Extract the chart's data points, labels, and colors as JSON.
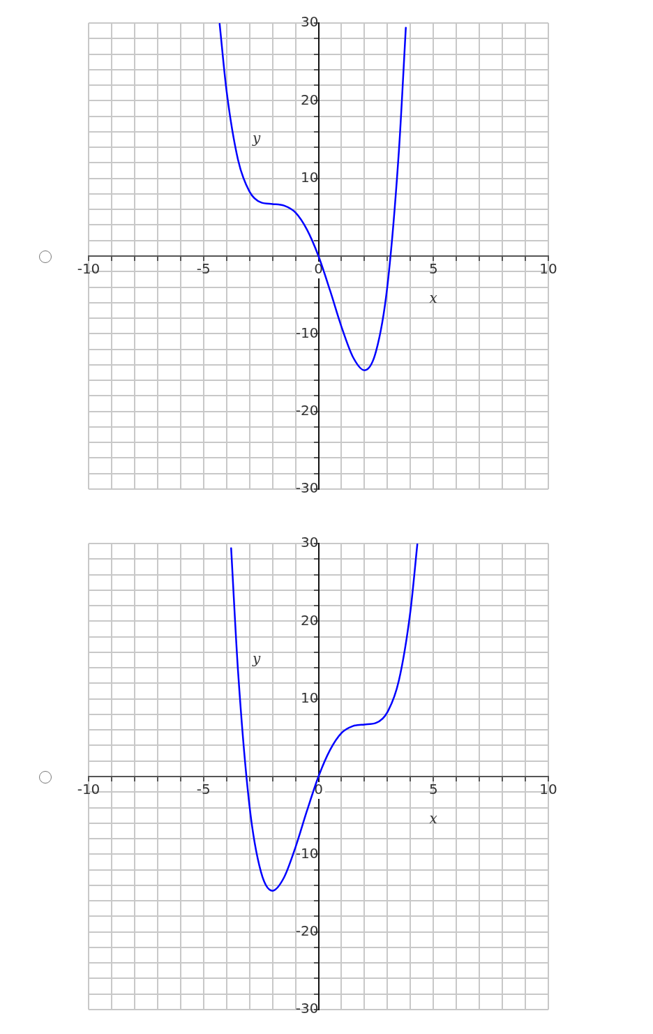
{
  "chart_data": [
    {
      "type": "line",
      "xlabel": "x",
      "ylabel": "y",
      "xlim": [
        -10,
        10
      ],
      "ylim": [
        -30,
        30
      ],
      "xticks": [
        -10,
        {
          "value": -9,
          "label": null
        },
        {
          "value": -8,
          "label": null
        },
        {
          "value": -7,
          "label": null
        },
        {
          "value": -6,
          "label": null
        },
        -5,
        {
          "value": -4,
          "label": null
        },
        {
          "value": -3,
          "label": null
        },
        {
          "value": -2,
          "label": null
        },
        {
          "value": -1,
          "label": null
        },
        0,
        {
          "value": 1,
          "label": null
        },
        {
          "value": 2,
          "label": null
        },
        {
          "value": 3,
          "label": null
        },
        {
          "value": 4,
          "label": null
        },
        5,
        {
          "value": 6,
          "label": null
        },
        {
          "value": 7,
          "label": null
        },
        {
          "value": 8,
          "label": null
        },
        {
          "value": 9,
          "label": null
        },
        10
      ],
      "yticks": [
        -30,
        {
          "value": -28,
          "label": null
        },
        {
          "value": -26,
          "label": null
        },
        {
          "value": -24,
          "label": null
        },
        {
          "value": -22,
          "label": null
        },
        -20,
        {
          "value": -18,
          "label": null
        },
        {
          "value": -16,
          "label": null
        },
        {
          "value": -14,
          "label": null
        },
        {
          "value": -12,
          "label": null
        },
        -10,
        {
          "value": -8,
          "label": null
        },
        {
          "value": -6,
          "label": null
        },
        {
          "value": -4,
          "label": null
        },
        {
          "value": -2,
          "label": null
        },
        {
          "value": 0,
          "label": null
        },
        {
          "value": 2,
          "label": null
        },
        {
          "value": 4,
          "label": null
        },
        {
          "value": 6,
          "label": null
        },
        {
          "value": 8,
          "label": null
        },
        10,
        {
          "value": 12,
          "label": null
        },
        {
          "value": 14,
          "label": null
        },
        {
          "value": 16,
          "label": null
        },
        {
          "value": 18,
          "label": null
        },
        20,
        {
          "value": 22,
          "label": null
        },
        {
          "value": 24,
          "label": null
        },
        {
          "value": 26,
          "label": null
        },
        {
          "value": 28,
          "label": null
        },
        30
      ],
      "grid": true,
      "legend": false,
      "marker": "none",
      "line_style": "solid",
      "series": [
        {
          "color": "#0000ff",
          "x": [
            -4.3,
            -4,
            -3.5,
            -3,
            -2.5,
            -2,
            -1.5,
            -1,
            -0.5,
            0,
            0.5,
            1,
            1.5,
            2,
            2.5,
            3,
            3.5,
            3.8
          ],
          "values": [
            29.9,
            21.3,
            12.4,
            8.3,
            6.9,
            6.7,
            6.5,
            5.6,
            3.4,
            0,
            -4.4,
            -9.1,
            -13.0,
            -14.7,
            -12.3,
            -3.8,
            13.6,
            29.4
          ]
        }
      ]
    },
    {
      "type": "line",
      "xlabel": "x",
      "ylabel": "y",
      "xlim": [
        -10,
        10
      ],
      "ylim": [
        -30,
        30
      ],
      "xticks": [
        -10,
        {
          "value": -9,
          "label": null
        },
        {
          "value": -8,
          "label": null
        },
        {
          "value": -7,
          "label": null
        },
        {
          "value": -6,
          "label": null
        },
        -5,
        {
          "value": -4,
          "label": null
        },
        {
          "value": -3,
          "label": null
        },
        {
          "value": -2,
          "label": null
        },
        {
          "value": -1,
          "label": null
        },
        0,
        {
          "value": 1,
          "label": null
        },
        {
          "value": 2,
          "label": null
        },
        {
          "value": 3,
          "label": null
        },
        {
          "value": 4,
          "label": null
        },
        5,
        {
          "value": 6,
          "label": null
        },
        {
          "value": 7,
          "label": null
        },
        {
          "value": 8,
          "label": null
        },
        {
          "value": 9,
          "label": null
        },
        10
      ],
      "yticks": [
        -30,
        {
          "value": -28,
          "label": null
        },
        {
          "value": -26,
          "label": null
        },
        {
          "value": -24,
          "label": null
        },
        {
          "value": -22,
          "label": null
        },
        -20,
        {
          "value": -18,
          "label": null
        },
        {
          "value": -16,
          "label": null
        },
        {
          "value": -14,
          "label": null
        },
        {
          "value": -12,
          "label": null
        },
        -10,
        {
          "value": -8,
          "label": null
        },
        {
          "value": -6,
          "label": null
        },
        {
          "value": -4,
          "label": null
        },
        {
          "value": -2,
          "label": null
        },
        {
          "value": 0,
          "label": null
        },
        {
          "value": 2,
          "label": null
        },
        {
          "value": 4,
          "label": null
        },
        {
          "value": 6,
          "label": null
        },
        {
          "value": 8,
          "label": null
        },
        10,
        {
          "value": 12,
          "label": null
        },
        {
          "value": 14,
          "label": null
        },
        {
          "value": 16,
          "label": null
        },
        {
          "value": 18,
          "label": null
        },
        20,
        {
          "value": 22,
          "label": null
        },
        {
          "value": 24,
          "label": null
        },
        {
          "value": 26,
          "label": null
        },
        {
          "value": 28,
          "label": null
        },
        30
      ],
      "grid": true,
      "legend": false,
      "marker": "none",
      "line_style": "solid",
      "series": [
        {
          "color": "#0000ff",
          "x": [
            -3.8,
            -3.5,
            -3,
            -2.5,
            -2,
            -1.5,
            -1,
            -0.5,
            0,
            0.5,
            1,
            1.5,
            2,
            2.5,
            3,
            3.5,
            4,
            4.3
          ],
          "values": [
            29.4,
            13.6,
            -3.8,
            -12.3,
            -14.7,
            -13.0,
            -9.1,
            -4.4,
            0,
            3.4,
            5.6,
            6.5,
            6.7,
            6.9,
            8.3,
            12.4,
            21.3,
            29.9
          ]
        }
      ]
    }
  ]
}
